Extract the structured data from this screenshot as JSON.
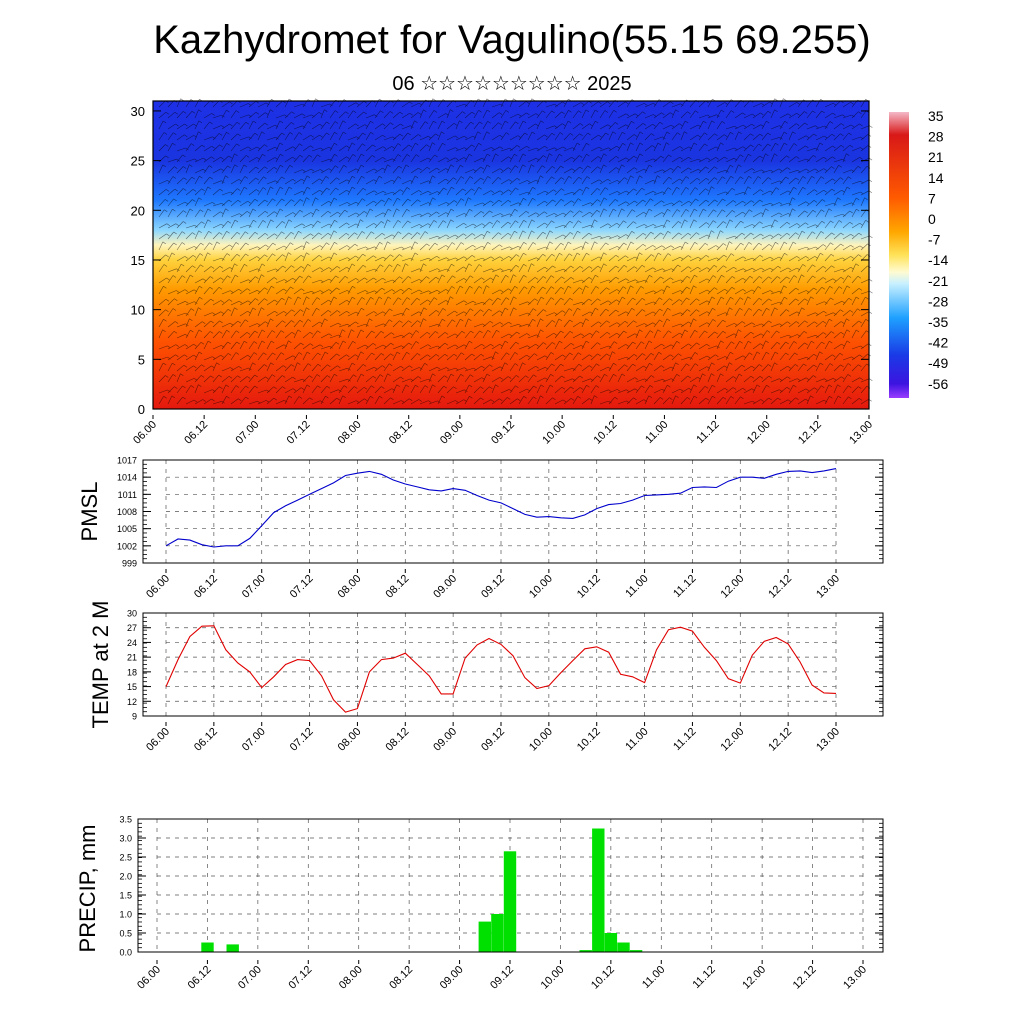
{
  "header": {
    "title": "Kazhydromet for Vagulino(55.15 69.255)",
    "subtitle": "06 ☆☆☆☆☆☆☆☆☆ 2025"
  },
  "time_ticks": [
    "06.00",
    "06.12",
    "07.00",
    "07.12",
    "08.00",
    "08.12",
    "09.00",
    "09.12",
    "10.00",
    "10.12",
    "11.00",
    "11.12",
    "12.00",
    "12.12",
    "13.00"
  ],
  "colors": {
    "pmsl_line": "#0000cc",
    "temp_line": "#e00000",
    "precip_bar": "#00e000",
    "grid": "#555555"
  },
  "chart_data": [
    {
      "type": "heatmap",
      "id": "cross-section",
      "title": "",
      "xlabel": "",
      "ylabel": "",
      "x_ticks": [
        "06.00",
        "06.12",
        "07.00",
        "07.12",
        "08.00",
        "08.12",
        "09.00",
        "09.12",
        "10.00",
        "10.12",
        "11.00",
        "11.12",
        "12.00",
        "12.12",
        "13.00"
      ],
      "y_ticks": [
        0,
        5,
        10,
        15,
        20,
        25,
        30
      ],
      "ylim": [
        0,
        31
      ],
      "colorbar": {
        "labels": [
          "35",
          "28",
          "21",
          "14",
          "7",
          "0",
          "-7",
          "-14",
          "-21",
          "-28",
          "-35",
          "-42",
          "-49",
          "-56"
        ],
        "stops": [
          {
            "at": 0.0,
            "color": "#f4b8c8"
          },
          {
            "at": 0.08,
            "color": "#d81818"
          },
          {
            "at": 0.3,
            "color": "#ff5a00"
          },
          {
            "at": 0.42,
            "color": "#ffa800"
          },
          {
            "at": 0.5,
            "color": "#ffe25a"
          },
          {
            "at": 0.56,
            "color": "#fffbd2"
          },
          {
            "at": 0.6,
            "color": "#c8f0ff"
          },
          {
            "at": 0.72,
            "color": "#1ea0ff"
          },
          {
            "at": 0.85,
            "color": "#1a3ae6"
          },
          {
            "at": 0.95,
            "color": "#3c14e0"
          },
          {
            "at": 1.0,
            "color": "#9a3cff"
          }
        ]
      },
      "field_stops": [
        {
          "level": 0,
          "color": "#e4180e"
        },
        {
          "level": 7,
          "color": "#ff5400"
        },
        {
          "level": 12,
          "color": "#ff9a00"
        },
        {
          "level": 15,
          "color": "#ffd23c"
        },
        {
          "level": 16.5,
          "color": "#fff4bc"
        },
        {
          "level": 18,
          "color": "#8cd6ff"
        },
        {
          "level": 21,
          "color": "#1e78ff"
        },
        {
          "level": 25,
          "color": "#1a34e0"
        },
        {
          "level": 31,
          "color": "#1e30e6"
        }
      ]
    },
    {
      "type": "line",
      "id": "pmsl",
      "ylabel": "PMSL",
      "ylim": [
        999,
        1017
      ],
      "y_ticks": [
        999,
        1002,
        1005,
        1008,
        1011,
        1014,
        1017
      ],
      "x_ticks": [
        "06.00",
        "06.12",
        "07.00",
        "07.12",
        "08.00",
        "08.12",
        "09.00",
        "09.12",
        "10.00",
        "10.12",
        "11.00",
        "11.12",
        "12.00",
        "12.12",
        "13.00"
      ],
      "series": [
        {
          "values": [
            1002.0,
            1003.2,
            1003.0,
            1002.2,
            1001.8,
            1002.0,
            1002.0,
            1003.3,
            1005.5,
            1007.8,
            1009.0,
            1010.0,
            1011.0,
            1012.0,
            1013.0,
            1014.3,
            1014.7,
            1015.0,
            1014.5,
            1013.5,
            1012.8,
            1012.3,
            1011.8,
            1011.6,
            1012.0,
            1011.7,
            1010.8,
            1010.0,
            1009.5,
            1008.5,
            1007.5,
            1007.0,
            1007.1,
            1006.9,
            1006.8,
            1007.4,
            1008.5,
            1009.2,
            1009.4,
            1010.0,
            1010.8,
            1010.9,
            1011.0,
            1011.2,
            1012.2,
            1012.3,
            1012.2,
            1013.3,
            1014.0,
            1014.0,
            1013.8,
            1014.5,
            1015.0,
            1015.1,
            1014.8,
            1015.1,
            1015.5
          ]
        }
      ]
    },
    {
      "type": "line",
      "id": "temp",
      "ylabel": "TEMP at 2 M",
      "ylim": [
        9,
        30
      ],
      "y_ticks": [
        9,
        12,
        15,
        18,
        21,
        24,
        27,
        30
      ],
      "x_ticks": [
        "06.00",
        "06.12",
        "07.00",
        "07.12",
        "08.00",
        "08.12",
        "09.00",
        "09.12",
        "10.00",
        "10.12",
        "11.00",
        "11.12",
        "12.00",
        "12.12",
        "13.00"
      ],
      "series": [
        {
          "values": [
            15.0,
            20.5,
            25.2,
            27.3,
            27.4,
            22.5,
            19.8,
            18.0,
            14.8,
            17.0,
            19.5,
            20.5,
            20.3,
            17.2,
            12.3,
            9.8,
            10.5,
            18.0,
            20.5,
            20.8,
            21.8,
            19.5,
            17.2,
            13.5,
            13.5,
            20.8,
            23.5,
            24.8,
            23.6,
            21.3,
            16.8,
            14.6,
            15.2,
            17.8,
            20.3,
            22.7,
            23.1,
            22.0,
            17.5,
            17.0,
            15.8,
            22.5,
            26.6,
            27.1,
            26.3,
            23.0,
            20.3,
            16.6,
            15.7,
            21.4,
            24.2,
            25.0,
            23.7,
            20.0,
            15.3,
            13.7,
            13.6
          ]
        }
      ]
    },
    {
      "type": "bar",
      "id": "precip",
      "ylabel": "PRECIP, mm",
      "ylim": [
        0,
        3.5
      ],
      "y_ticks": [
        "0.0",
        "0.5",
        "1.0",
        "1.5",
        "2.0",
        "2.5",
        "3.0",
        "3.5"
      ],
      "x_ticks": [
        "06.00",
        "06.12",
        "07.00",
        "07.12",
        "08.00",
        "08.12",
        "09.00",
        "09.12",
        "10.00",
        "10.12",
        "11.00",
        "11.12",
        "12.00",
        "12.12",
        "13.00"
      ],
      "series": [
        {
          "values": [
            0,
            0,
            0,
            0,
            0.25,
            0,
            0.2,
            0,
            0,
            0,
            0,
            0,
            0,
            0,
            0,
            0,
            0,
            0,
            0,
            0,
            0,
            0,
            0,
            0,
            0,
            0,
            0.8,
            1.0,
            2.65,
            0,
            0,
            0,
            0,
            0,
            0.05,
            3.25,
            0.5,
            0.25,
            0.05,
            0,
            0,
            0,
            0,
            0,
            0,
            0,
            0,
            0,
            0,
            0,
            0,
            0,
            0,
            0,
            0,
            0,
            0
          ]
        }
      ]
    }
  ]
}
